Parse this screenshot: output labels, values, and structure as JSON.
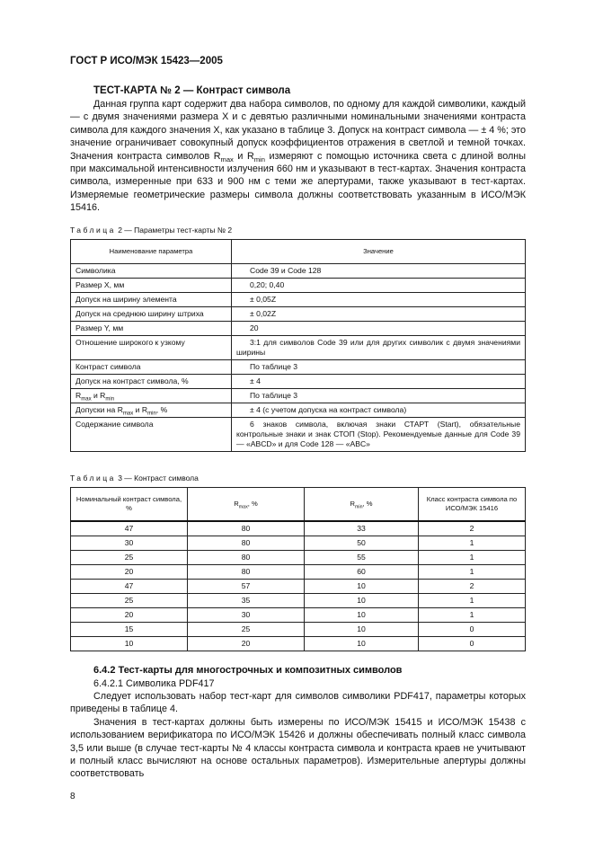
{
  "header": "ГОСТ Р ИСО/МЭК 15423—2005",
  "section_title": "ТЕСТ-КАРТА № 2 — Контраст символа",
  "intro": {
    "p1": "Данная группа карт содержит два набора символов, по одному для каждой символики, каждый — с двумя значениями размера X и с девятью различными номинальными значениями контраста символа для каждого значения X, как указано в таблице 3. Допуск на контраст символа — ± 4 %; это значение ограничивает совокупный допуск коэффициентов отражения в светлой и темной точках. Значения контраста символов ",
    "r": "R",
    "max": "max",
    "and": " и ",
    "min": "min",
    "p2": " измеряют с помощью источника света с длиной волны при максимальной интенсивности излучения 660 нм и указывают в тест-картах. Значения контраста символа, измеренные при 633 и 900 нм с теми же апертурами, также указывают в тест-картах. Измеряемые геометрические размеры символа должны соответствовать указанным в ИСО/МЭК 15416."
  },
  "table2": {
    "caption_word": "Таблица",
    "caption_rest": " 2 — Параметры тест-карты № 2",
    "headers": [
      "Наименование параметра",
      "Значение"
    ],
    "rows": [
      [
        "Символика",
        "Code 39 и Code 128"
      ],
      [
        "Размер X, мм",
        "0,20; 0,40"
      ],
      [
        "Допуск на ширину элемента",
        "± 0,05Z"
      ],
      [
        "Допуск на среднюю ширину штриха",
        "± 0,02Z"
      ],
      [
        "Размер Y, мм",
        "20"
      ],
      [
        "Отношение широкого к узкому",
        "3:1 для символов Code 39 или для других символик с двумя значениями ширины"
      ],
      [
        "Контраст символа",
        "По таблице 3"
      ],
      [
        "Допуск на контраст символа, %",
        "± 4"
      ],
      [
        "R",
        "По таблице 3"
      ],
      [
        "Допуски на R",
        "± 4 (с учетом допуска на контраст символа)"
      ],
      [
        "Содержание символа",
        "6 знаков символа, включая знаки СТАРТ (Start), обязательные контрольные знаки и знак СТОП (Stop). Рекомендуемые данные для Code 39 — «ABCD» и для Code 128 — «ABC»"
      ]
    ],
    "sub_max": "max",
    "sub_min": "min",
    "and": " и ",
    "r": "R",
    "pct": ", %"
  },
  "table3": {
    "caption_word": "Таблица",
    "caption_rest": " 3 — Контраст символа",
    "headers": [
      "Номинальный контраст символа, %",
      "R",
      "Класс контраста символа по ИСО/МЭК 15416"
    ],
    "h_max": "max",
    "h_min": "min",
    "h_pct": ", %",
    "rows": [
      [
        "47",
        "80",
        "33",
        "2"
      ],
      [
        "30",
        "80",
        "50",
        "1"
      ],
      [
        "25",
        "80",
        "55",
        "1"
      ],
      [
        "20",
        "80",
        "60",
        "1"
      ],
      [
        "47",
        "57",
        "10",
        "2"
      ],
      [
        "25",
        "35",
        "10",
        "1"
      ],
      [
        "20",
        "30",
        "10",
        "1"
      ],
      [
        "15",
        "25",
        "10",
        "0"
      ],
      [
        "10",
        "20",
        "10",
        "0"
      ]
    ]
  },
  "sec642": {
    "title": "6.4.2 Тест-карты для многострочных и композитных символов",
    "sub": "6.4.2.1 Символика PDF417",
    "p1": "Следует использовать набор тест-карт для символов символики PDF417, параметры которых приведены в таблице 4.",
    "p2": "Значения в тест-картах должны быть измерены по ИСО/МЭК 15415 и ИСО/МЭК 15438 с использованием верификатора по ИСО/МЭК 15426 и должны обеспечивать полный класс символа 3,5 или выше (в случае тест-карты № 4 классы контраста символа и контраста краев не учитывают и полный класс вычисляют на основе остальных параметров). Измерительные апертуры должны соответствовать"
  },
  "page_number": "8"
}
